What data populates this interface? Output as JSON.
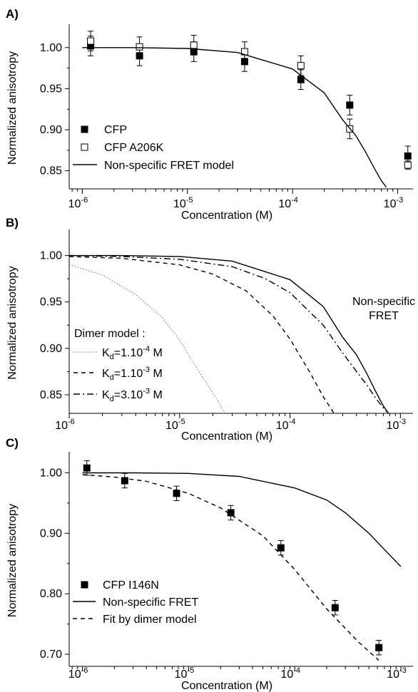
{
  "chart_data": [
    {
      "panel": "A)",
      "type": "scatter",
      "xlabel": "Concentration (M)",
      "ylabel": "Normalized anisotropy",
      "xscale": "log",
      "xlim": [
        7.5e-07,
        0.0014
      ],
      "ylim": [
        0.828,
        1.025
      ],
      "x_ticks": [
        {
          "base": "10",
          "exp": "-6",
          "value": 1e-06
        },
        {
          "base": "10",
          "exp": "-5",
          "value": 1e-05
        },
        {
          "base": "10",
          "exp": "-4",
          "value": 0.0001
        },
        {
          "base": "10",
          "exp": "-3",
          "value": 0.001
        }
      ],
      "y_ticks": [
        {
          "label": "1.00",
          "value": 1.0
        },
        {
          "label": "0.95",
          "value": 0.95
        },
        {
          "label": "0.90",
          "value": 0.9
        },
        {
          "label": "0.85",
          "value": 0.85
        }
      ],
      "legend_position": "bottom-left",
      "series": [
        {
          "name": "CFP",
          "marker": "filled-square",
          "x": [
            1.2e-06,
            3.5e-06,
            1.15e-05,
            3.5e-05,
            0.00012,
            0.00035,
            0.00125
          ],
          "y": [
            1.002,
            0.99,
            0.995,
            0.983,
            0.961,
            0.93,
            0.868
          ],
          "err": [
            0.012,
            0.012,
            0.012,
            0.012,
            0.012,
            0.012,
            0.012
          ]
        },
        {
          "name": "CFP A206K",
          "marker": "open-square",
          "x": [
            1.2e-06,
            3.5e-06,
            1.15e-05,
            3.5e-05,
            0.00012,
            0.00035,
            0.00125
          ],
          "y": [
            1.008,
            1.001,
            1.003,
            0.995,
            0.978,
            0.901,
            0.857
          ],
          "err": [
            0.012,
            0.012,
            0.012,
            0.012,
            0.012,
            0.012,
            0.005
          ]
        },
        {
          "name": "Non-specific FRET model",
          "style": "solid",
          "x": [
            1e-06,
            3e-06,
            1e-05,
            3e-05,
            0.0001,
            0.0002,
            0.0003,
            0.0004,
            0.0005,
            0.0006,
            0.0007,
            0.00078
          ],
          "y": [
            1.0,
            1.0,
            0.999,
            0.994,
            0.974,
            0.945,
            0.912,
            0.893,
            0.872,
            0.853,
            0.838,
            0.83
          ]
        }
      ]
    },
    {
      "panel": "B)",
      "type": "line",
      "xlabel": "Concentration (M)",
      "ylabel": "Normalized anisotropy",
      "xscale": "log",
      "xlim": [
        1e-06,
        0.0013
      ],
      "ylim": [
        0.83,
        1.025
      ],
      "x_ticks": [
        {
          "base": "10",
          "exp": "-6",
          "value": 1e-06
        },
        {
          "base": "10",
          "exp": "-5",
          "value": 1e-05
        },
        {
          "base": "10",
          "exp": "-4",
          "value": 0.0001
        },
        {
          "base": "10",
          "exp": "-3",
          "value": 0.001
        }
      ],
      "y_ticks": [
        {
          "label": "1.00",
          "value": 1.0
        },
        {
          "label": "0.95",
          "value": 0.95
        },
        {
          "label": "0.90",
          "value": 0.9
        },
        {
          "label": "0.85",
          "value": 0.85
        }
      ],
      "legend_title": "Dimer model :",
      "annotation": [
        "Non-specific",
        "FRET"
      ],
      "series": [
        {
          "name": "Non-specific FRET",
          "style": "solid",
          "x": [
            1e-06,
            3e-06,
            1e-05,
            3e-05,
            0.0001,
            0.0002,
            0.0003,
            0.0004,
            0.0005,
            0.0006,
            0.0007,
            0.00078
          ],
          "y": [
            1.0,
            1.0,
            0.999,
            0.994,
            0.974,
            0.945,
            0.912,
            0.893,
            0.872,
            0.853,
            0.838,
            0.83
          ]
        },
        {
          "name": "K_d=1.10^-4 M",
          "label": {
            "pre": "K",
            "sub": "d",
            "mid": "=1.10",
            "sup": "-4",
            "post": " M"
          },
          "style": "dotted",
          "x": [
            1e-06,
            2e-06,
            4e-06,
            7e-06,
            1e-05,
            1.5e-05,
            2e-05,
            2.6e-05
          ],
          "y": [
            0.99,
            0.979,
            0.958,
            0.933,
            0.909,
            0.875,
            0.852,
            0.83
          ]
        },
        {
          "name": "K_d=1.10^-3 M",
          "label": {
            "pre": "K",
            "sub": "d",
            "mid": "=1.10",
            "sup": "-3",
            "post": " M"
          },
          "style": "dashed",
          "x": [
            1e-06,
            3e-06,
            1e-05,
            2e-05,
            4e-05,
            7e-05,
            0.0001,
            0.00015,
            0.0002,
            0.00025
          ],
          "y": [
            0.999,
            0.997,
            0.99,
            0.98,
            0.962,
            0.935,
            0.91,
            0.875,
            0.848,
            0.83
          ]
        },
        {
          "name": "K_d=3.10^-3 M",
          "label": {
            "pre": "K",
            "sub": "d",
            "mid": "=3.10",
            "sup": "-3",
            "post": " M"
          },
          "style": "dash-dot",
          "x": [
            1e-06,
            3e-06,
            1e-05,
            3e-05,
            6e-05,
            0.0001,
            0.0002,
            0.0003,
            0.0004,
            0.0005,
            0.0006,
            0.0007,
            0.00078
          ],
          "y": [
            1.0,
            0.999,
            0.996,
            0.988,
            0.975,
            0.96,
            0.925,
            0.895,
            0.875,
            0.86,
            0.846,
            0.836,
            0.83
          ]
        }
      ]
    },
    {
      "panel": "C)",
      "type": "scatter",
      "xlabel": "Concentration (M)",
      "ylabel": "Normalized anisotropy",
      "xscale": "log",
      "xlim": [
        7.5e-07,
        0.0013
      ],
      "ylim": [
        0.68,
        1.03
      ],
      "x_ticks": [
        {
          "base": "10",
          "exp": "-6",
          "value": 1e-06
        },
        {
          "base": "10",
          "exp": "-5",
          "value": 1e-05
        },
        {
          "base": "10",
          "exp": "-4",
          "value": 0.0001
        },
        {
          "base": "10",
          "exp": "-3",
          "value": 0.001
        }
      ],
      "y_ticks": [
        {
          "label": "1.00",
          "value": 1.0
        },
        {
          "label": "0.90",
          "value": 0.9
        },
        {
          "label": "0.80",
          "value": 0.8
        },
        {
          "label": "0.70",
          "value": 0.7
        }
      ],
      "legend_position": "bottom-left",
      "series": [
        {
          "name": "CFP I146N",
          "marker": "filled-square",
          "x": [
            1.1e-06,
            2.5e-06,
            7.7e-06,
            2.5e-05,
            7.4e-05,
            0.00024,
            0.00062
          ],
          "y": [
            1.008,
            0.987,
            0.966,
            0.934,
            0.876,
            0.777,
            0.711
          ],
          "err": [
            0.012,
            0.012,
            0.012,
            0.012,
            0.012,
            0.012,
            0.012
          ]
        },
        {
          "name": "Non-specific FRET",
          "style": "solid",
          "x": [
            1e-06,
            3e-06,
            1e-05,
            3e-05,
            0.0001,
            0.0002,
            0.0003,
            0.0005,
            0.0007,
            0.001
          ],
          "y": [
            1.0,
            1.0,
            0.999,
            0.994,
            0.975,
            0.955,
            0.934,
            0.9,
            0.873,
            0.845
          ]
        },
        {
          "name": "Fit by dimer model",
          "style": "dashed",
          "x": [
            1e-06,
            2e-06,
            4e-06,
            1e-05,
            2e-05,
            5e-05,
            0.0001,
            0.0002,
            0.0004,
            0.00062
          ],
          "y": [
            0.997,
            0.993,
            0.986,
            0.966,
            0.942,
            0.896,
            0.84,
            0.775,
            0.72,
            0.69
          ]
        }
      ]
    }
  ]
}
